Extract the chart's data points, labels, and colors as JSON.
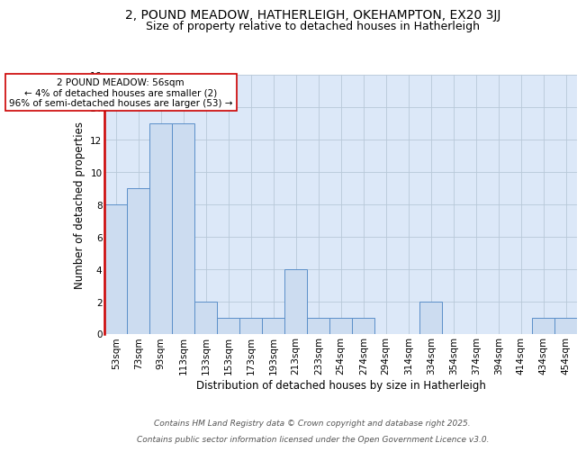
{
  "title1": "2, POUND MEADOW, HATHERLEIGH, OKEHAMPTON, EX20 3JJ",
  "title2": "Size of property relative to detached houses in Hatherleigh",
  "xlabel": "Distribution of detached houses by size in Hatherleigh",
  "ylabel": "Number of detached properties",
  "categories": [
    "53sqm",
    "73sqm",
    "93sqm",
    "113sqm",
    "133sqm",
    "153sqm",
    "173sqm",
    "193sqm",
    "213sqm",
    "233sqm",
    "254sqm",
    "274sqm",
    "294sqm",
    "314sqm",
    "334sqm",
    "354sqm",
    "374sqm",
    "394sqm",
    "414sqm",
    "434sqm",
    "454sqm"
  ],
  "values": [
    8,
    9,
    13,
    13,
    2,
    1,
    1,
    1,
    4,
    1,
    1,
    1,
    0,
    0,
    2,
    0,
    0,
    0,
    0,
    1,
    1
  ],
  "bar_color": "#ccdcf0",
  "bar_edge_color": "#5b8fc9",
  "highlight_line_color": "#cc0000",
  "annotation_line1": "2 POUND MEADOW: 56sqm",
  "annotation_line2": "← 4% of detached houses are smaller (2)",
  "annotation_line3": "96% of semi-detached houses are larger (53) →",
  "annotation_box_edge_color": "#cc0000",
  "annotation_box_face_color": "#ffffff",
  "ylim": [
    0,
    16
  ],
  "yticks": [
    0,
    2,
    4,
    6,
    8,
    10,
    12,
    14,
    16
  ],
  "ax_bg_color": "#dce8f8",
  "footer_line1": "Contains HM Land Registry data © Crown copyright and database right 2025.",
  "footer_line2": "Contains public sector information licensed under the Open Government Licence v3.0.",
  "title1_fontsize": 10,
  "title2_fontsize": 9,
  "axis_label_fontsize": 8.5,
  "tick_fontsize": 7.5,
  "annotation_fontsize": 7.5,
  "footer_fontsize": 6.5
}
